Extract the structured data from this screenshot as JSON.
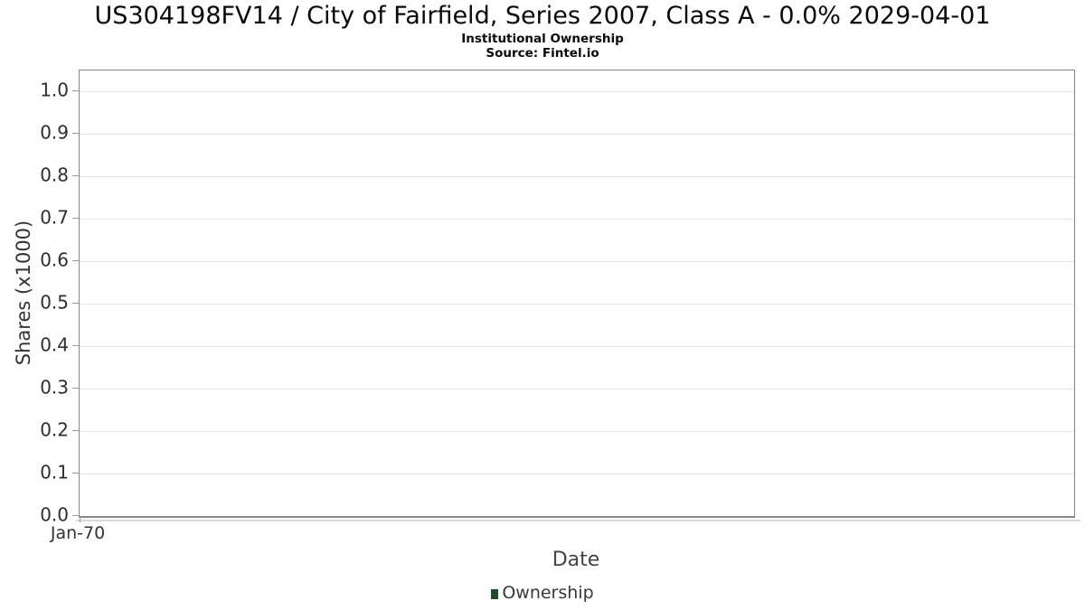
{
  "chart_data": {
    "type": "line",
    "title": "US304198FV14 / City of Fairfield, Series 2007, Class A - 0.0% 2029-04-01",
    "subtitle": "Institutional Ownership",
    "source": "Source: Fintel.io",
    "xlabel": "Date",
    "ylabel": "Shares (x1000)",
    "ylim": [
      0,
      1.05
    ],
    "yticks": [
      {
        "value": 0.0,
        "label": "0.0"
      },
      {
        "value": 0.1,
        "label": "0.1"
      },
      {
        "value": 0.2,
        "label": "0.2"
      },
      {
        "value": 0.3,
        "label": "0.3"
      },
      {
        "value": 0.4,
        "label": "0.4"
      },
      {
        "value": 0.5,
        "label": "0.5"
      },
      {
        "value": 0.6,
        "label": "0.6"
      },
      {
        "value": 0.7,
        "label": "0.7"
      },
      {
        "value": 0.8,
        "label": "0.8"
      },
      {
        "value": 0.9,
        "label": "0.9"
      },
      {
        "value": 1.0,
        "label": "1.0"
      }
    ],
    "xticks": [
      "Jan-70"
    ],
    "grid": true,
    "legend_position": "bottom",
    "series": [
      {
        "name": "Ownership",
        "color": "#1e4d2b",
        "x": [],
        "values": []
      }
    ],
    "colors": {
      "grid_line": "#e4e4e4",
      "plot_border": "#878787",
      "tick_mark": "#9a9a9a",
      "axis_shadow": "#d9d9d9",
      "title_text": "#0a0a0a",
      "tick_label_text": "#2e2e2e",
      "axis_title_text": "#444444",
      "legend_text": "#383838",
      "background": "#ffffff"
    }
  }
}
